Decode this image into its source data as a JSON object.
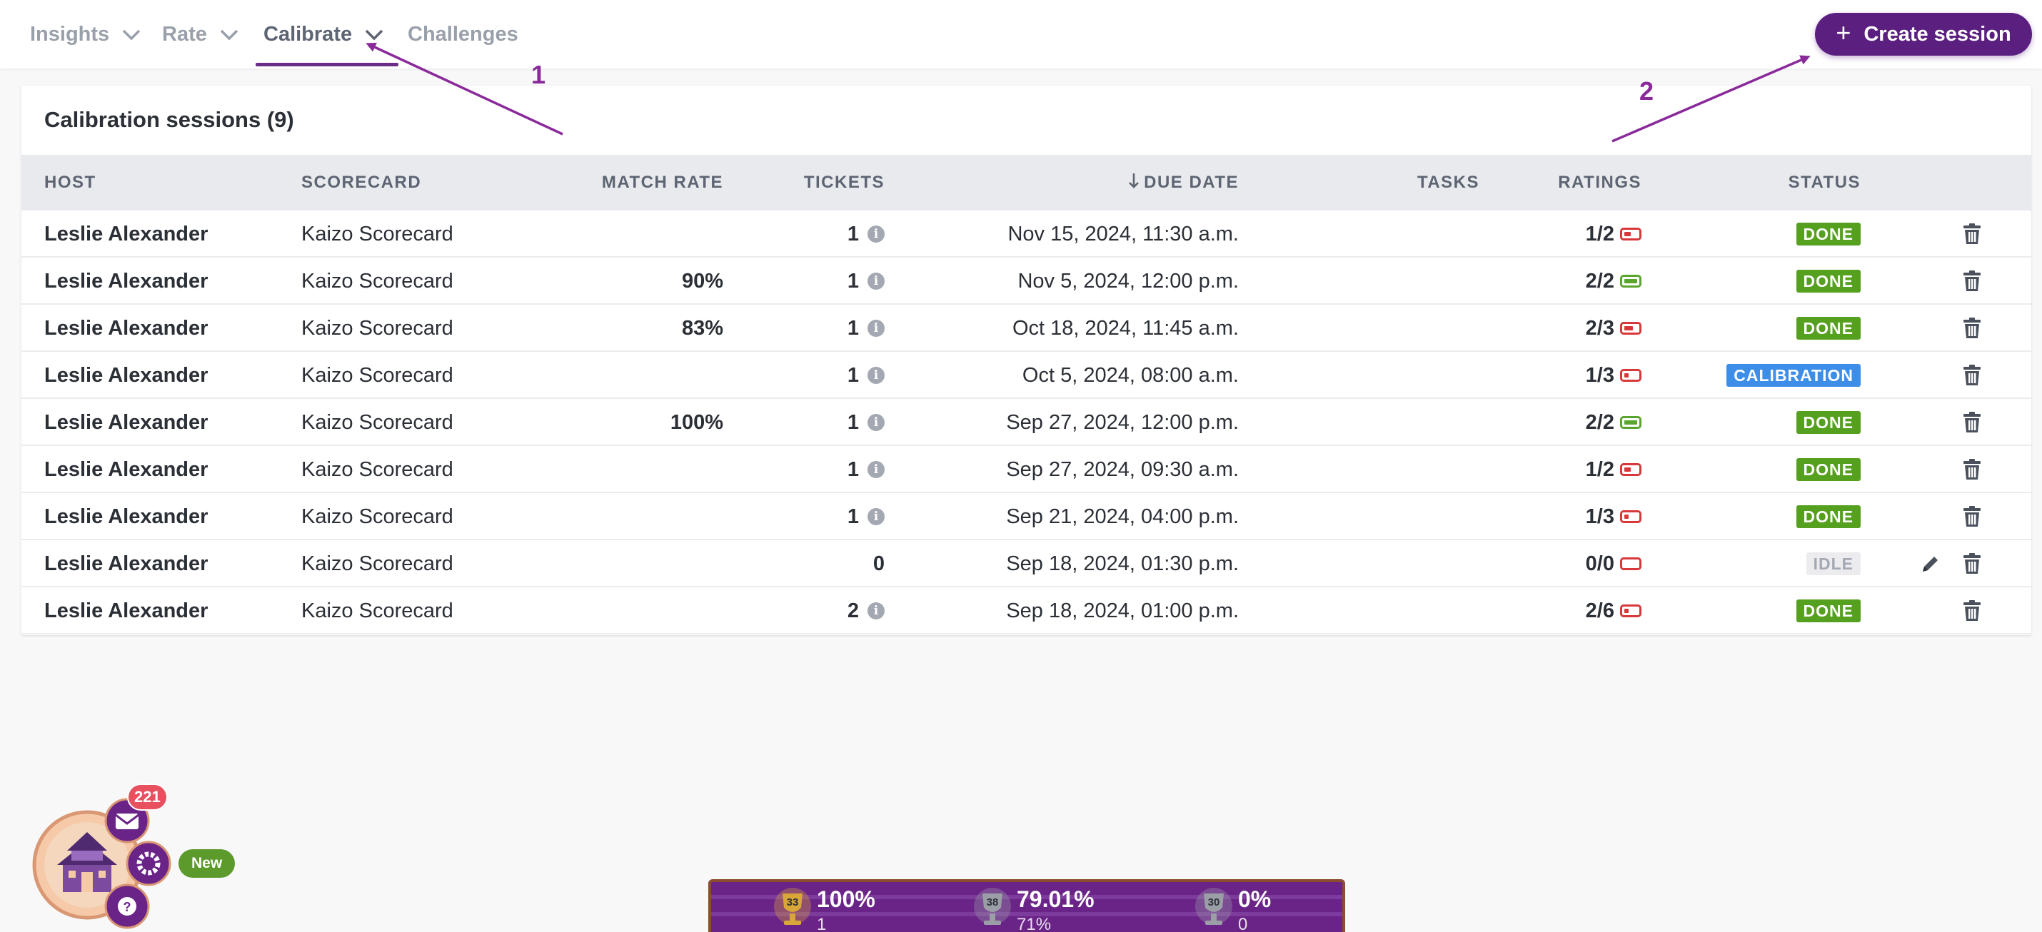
{
  "nav": {
    "items": [
      {
        "label": "Insights",
        "has_dropdown": true
      },
      {
        "label": "Rate",
        "has_dropdown": true
      },
      {
        "label": "Calibrate",
        "has_dropdown": true,
        "active": true
      },
      {
        "label": "Challenges",
        "has_dropdown": false
      }
    ],
    "create_button": "Create session"
  },
  "annotations": [
    "1",
    "2"
  ],
  "card": {
    "title": "Calibration sessions (9)",
    "columns": {
      "host": "HOST",
      "scorecard": "SCORECARD",
      "match_rate": "MATCH RATE",
      "tickets": "TICKETS",
      "due_date": "DUE DATE",
      "tasks": "TASKS",
      "ratings": "RATINGS",
      "status": "STATUS"
    },
    "sort_icon": "arrow-down-icon",
    "rows": [
      {
        "host": "Leslie Alexander",
        "scorecard": "Kaizo Scorecard",
        "match_rate": "",
        "tickets": "1",
        "has_info": true,
        "due": "Nov 15, 2024, 11:30 a.m.",
        "tasks": "",
        "ratings": "1/2",
        "rating_fraction": 0.5,
        "status": "DONE",
        "editable": false
      },
      {
        "host": "Leslie Alexander",
        "scorecard": "Kaizo Scorecard",
        "match_rate": "90%",
        "tickets": "1",
        "has_info": true,
        "due": "Nov 5, 2024, 12:00 p.m.",
        "tasks": "",
        "ratings": "2/2",
        "rating_fraction": 1,
        "status": "DONE",
        "editable": false
      },
      {
        "host": "Leslie Alexander",
        "scorecard": "Kaizo Scorecard",
        "match_rate": "83%",
        "tickets": "1",
        "has_info": true,
        "due": "Oct 18, 2024, 11:45 a.m.",
        "tasks": "",
        "ratings": "2/3",
        "rating_fraction": 0.667,
        "status": "DONE",
        "editable": false
      },
      {
        "host": "Leslie Alexander",
        "scorecard": "Kaizo Scorecard",
        "match_rate": "",
        "tickets": "1",
        "has_info": true,
        "due": "Oct 5, 2024, 08:00 a.m.",
        "tasks": "",
        "ratings": "1/3",
        "rating_fraction": 0.333,
        "status": "CALIBRATION",
        "editable": false
      },
      {
        "host": "Leslie Alexander",
        "scorecard": "Kaizo Scorecard",
        "match_rate": "100%",
        "tickets": "1",
        "has_info": true,
        "due": "Sep 27, 2024, 12:00 p.m.",
        "tasks": "",
        "ratings": "2/2",
        "rating_fraction": 1,
        "status": "DONE",
        "editable": false
      },
      {
        "host": "Leslie Alexander",
        "scorecard": "Kaizo Scorecard",
        "match_rate": "",
        "tickets": "1",
        "has_info": true,
        "due": "Sep 27, 2024, 09:30 a.m.",
        "tasks": "",
        "ratings": "1/2",
        "rating_fraction": 0.5,
        "status": "DONE",
        "editable": false
      },
      {
        "host": "Leslie Alexander",
        "scorecard": "Kaizo Scorecard",
        "match_rate": "",
        "tickets": "1",
        "has_info": true,
        "due": "Sep 21, 2024, 04:00 p.m.",
        "tasks": "",
        "ratings": "1/3",
        "rating_fraction": 0.333,
        "status": "DONE",
        "editable": false
      },
      {
        "host": "Leslie Alexander",
        "scorecard": "Kaizo Scorecard",
        "match_rate": "",
        "tickets": "0",
        "has_info": false,
        "due": "Sep 18, 2024, 01:30 p.m.",
        "tasks": "",
        "ratings": "0/0",
        "rating_fraction": 0,
        "status": "IDLE",
        "editable": true
      },
      {
        "host": "Leslie Alexander",
        "scorecard": "Kaizo Scorecard",
        "match_rate": "",
        "tickets": "2",
        "has_info": true,
        "due": "Sep 18, 2024, 01:00 p.m.",
        "tasks": "",
        "ratings": "2/6",
        "rating_fraction": 0.333,
        "status": "DONE",
        "editable": false
      }
    ]
  },
  "widget": {
    "notification_count": "221",
    "new_label": "New",
    "icons": [
      "house-icon",
      "mail-icon",
      "gear-icon",
      "help-icon"
    ]
  },
  "stats": [
    {
      "trophy_number": "33",
      "trophy_color": "#d9a63a",
      "value": "100%",
      "sub": "1"
    },
    {
      "trophy_number": "38",
      "trophy_color": "#9b9ea6",
      "value": "79.01%",
      "sub": "71%"
    },
    {
      "trophy_number": "30",
      "trophy_color": "#9b9ea6",
      "value": "0%",
      "sub": "0"
    }
  ],
  "colors": {
    "brand": "#5b1f80",
    "done": "#55a01f",
    "calibration": "#3d8ee8",
    "rating_low": "#d9383a",
    "rating_full": "#5aa52e",
    "annotation": "#8a2a9a"
  }
}
